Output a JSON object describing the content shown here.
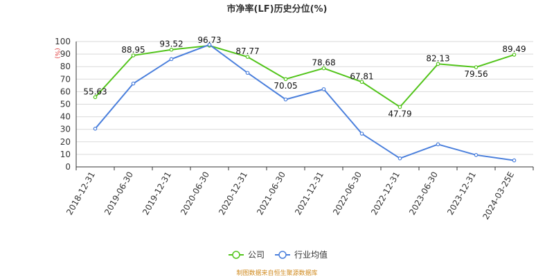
{
  "chart_data": {
    "type": "line",
    "title": "市净率(LF)历史分位(%)",
    "y_unit": "(%)",
    "ylim": [
      0,
      100
    ],
    "yticks": [
      0,
      10,
      20,
      30,
      40,
      50,
      60,
      70,
      80,
      90,
      100
    ],
    "grid": true,
    "legend_position": "bottom-center",
    "categories": [
      "2018-12-31",
      "2019-06-30",
      "2019-12-31",
      "2020-06-30",
      "2020-12-31",
      "2021-06-30",
      "2021-12-31",
      "2022-06-30",
      "2022-12-31",
      "2023-06-30",
      "2023-12-31",
      "2024-03-25E"
    ],
    "series": [
      {
        "name": "公司",
        "color": "#52c41a",
        "values": [
          55.63,
          88.95,
          93.52,
          96.73,
          87.77,
          70.05,
          78.68,
          67.81,
          47.79,
          82.13,
          79.56,
          89.49
        ],
        "labels": [
          "55.63",
          "88.95",
          "93.52",
          "96.73",
          "87.77",
          "70.05",
          "78.68",
          "67.81",
          "47.79",
          "82.13",
          "79.56",
          "89.49"
        ]
      },
      {
        "name": "行业均值",
        "color": "#4a7fdc",
        "values": [
          30.5,
          66.5,
          86.0,
          97.5,
          75.0,
          53.8,
          62.0,
          26.5,
          6.8,
          18.0,
          9.5,
          5.2
        ]
      }
    ]
  },
  "source_text": "制图数据来自恒生聚源数据库",
  "colors": {
    "axis": "#333333",
    "grid": "#d9d9d9",
    "unit": "#e03c3c",
    "source": "#d08a1e"
  }
}
